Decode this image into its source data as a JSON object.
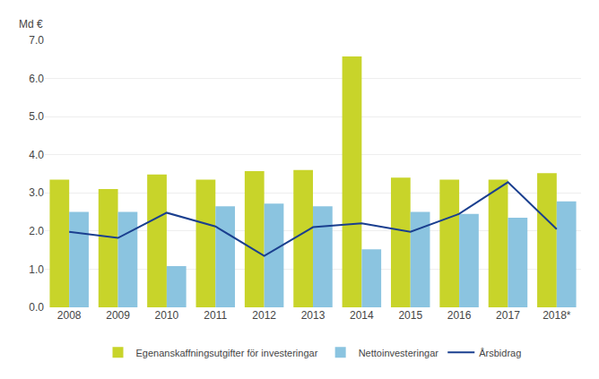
{
  "chart_data": {
    "type": "bar",
    "ylabel": "Md €",
    "categories": [
      "2008",
      "2009",
      "2010",
      "2011",
      "2012",
      "2013",
      "2014",
      "2015",
      "2016",
      "2017",
      "2018*"
    ],
    "series": [
      {
        "name": "Egenanskaffningsutgifter för investeringar",
        "type": "bar",
        "color": "#c8d42a",
        "values": [
          3.35,
          3.1,
          3.48,
          3.35,
          3.57,
          3.6,
          6.58,
          3.4,
          3.35,
          3.35,
          3.52
        ]
      },
      {
        "name": "Nettoinvesteringar",
        "type": "bar",
        "color": "#8bc4e0",
        "values": [
          2.5,
          2.5,
          1.08,
          2.65,
          2.72,
          2.65,
          1.52,
          2.5,
          2.45,
          2.35,
          2.78
        ]
      },
      {
        "name": "Årsbidrag",
        "type": "line",
        "color": "#1a3f8f",
        "values": [
          1.98,
          1.82,
          2.48,
          2.12,
          1.35,
          2.1,
          2.2,
          1.98,
          2.45,
          3.28,
          2.05
        ]
      }
    ],
    "ylim": [
      0,
      7.0
    ],
    "yticks": [
      {
        "value": 0,
        "label": "0.0"
      },
      {
        "value": 1,
        "label": "1.0"
      },
      {
        "value": 2,
        "label": "2.0"
      },
      {
        "value": 3,
        "label": "3.0"
      },
      {
        "value": 4,
        "label": "4.0"
      },
      {
        "value": 5,
        "label": "5.0"
      },
      {
        "value": 6,
        "label": "6.0"
      },
      {
        "value": 7,
        "label": "7.0"
      }
    ],
    "grid": true,
    "legend": "bottom"
  }
}
